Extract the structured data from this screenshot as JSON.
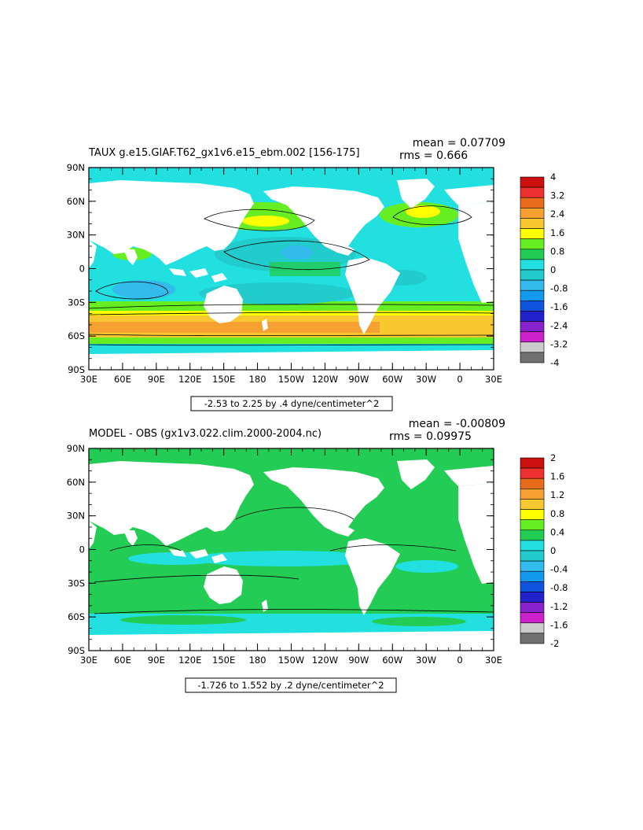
{
  "panels": [
    {
      "title": "TAUX g.e15.GIAF.T62_gx1v6.e15_ebm.002 [156-175]",
      "mean": "mean = 0.07709",
      "rms": "rms = 0.666",
      "range_label": "-2.53 to 2.25 by .4 dyne/centimeter^2",
      "lat_labels": [
        "90N",
        "60N",
        "30N",
        "0",
        "30S",
        "60S",
        "90S"
      ],
      "lon_labels": [
        "30E",
        "60E",
        "90E",
        "120E",
        "150E",
        "180",
        "150W",
        "120W",
        "90W",
        "60W",
        "30W",
        "0",
        "30E"
      ],
      "colorbar": {
        "labels": [
          "4",
          "3.2",
          "2.4",
          "1.6",
          "0.8",
          "0",
          "-0.8",
          "-1.6",
          "-2.4",
          "-3.2",
          "-4"
        ],
        "colors": [
          "#cc1010",
          "#ee3030",
          "#e86c1c",
          "#f5a030",
          "#f7c830",
          "#ffff00",
          "#66ee22",
          "#22cc55",
          "#22e0e0",
          "#22cccc",
          "#33bbee",
          "#1199ee",
          "#1055dd",
          "#2222cc",
          "#8822cc",
          "#cc22cc",
          "#cccccc",
          "#707070"
        ]
      }
    },
    {
      "title": "MODEL - OBS (gx1v3.022.clim.2000-2004.nc)",
      "mean": "mean = -0.00809",
      "rms": "rms = 0.09975",
      "range_label": "-1.726 to 1.552 by .2 dyne/centimeter^2",
      "lat_labels": [
        "90N",
        "60N",
        "30N",
        "0",
        "30S",
        "60S",
        "90S"
      ],
      "lon_labels": [
        "30E",
        "60E",
        "90E",
        "120E",
        "150E",
        "180",
        "150W",
        "120W",
        "90W",
        "60W",
        "30W",
        "0",
        "30E"
      ],
      "colorbar": {
        "labels": [
          "2",
          "1.6",
          "1.2",
          "0.8",
          "0.4",
          "0",
          "-0.4",
          "-0.8",
          "-1.2",
          "-1.6",
          "-2"
        ],
        "colors": [
          "#cc1010",
          "#ee3030",
          "#e86c1c",
          "#f5a030",
          "#f7c830",
          "#ffff00",
          "#66ee22",
          "#22cc55",
          "#22e0e0",
          "#22cccc",
          "#33bbee",
          "#1199ee",
          "#1055dd",
          "#2222cc",
          "#8822cc",
          "#cc22cc",
          "#cccccc",
          "#707070"
        ]
      }
    }
  ]
}
